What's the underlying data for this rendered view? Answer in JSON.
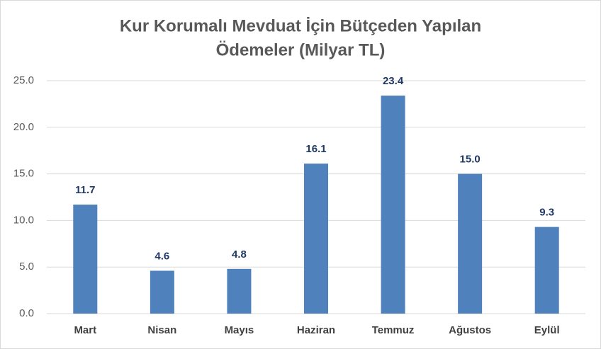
{
  "chart_data": {
    "type": "bar",
    "title": [
      "Kur Korumalı Mevduat İçin Bütçeden Yapılan",
      "Ödemeler (Milyar TL)"
    ],
    "categories": [
      "Mart",
      "Nisan",
      "Mayıs",
      "Haziran",
      "Temmuz",
      "Ağustos",
      "Eylül"
    ],
    "values": [
      11.7,
      4.6,
      4.8,
      16.1,
      23.4,
      15.0,
      9.3
    ],
    "value_labels": [
      "11.7",
      "4.6",
      "4.8",
      "16.1",
      "23.4",
      "15.0",
      "9.3"
    ],
    "color": "#4f81bd",
    "ylim": [
      0,
      25
    ],
    "yticks": [
      {
        "value": 0,
        "label": "0.0"
      },
      {
        "value": 5,
        "label": "5.0"
      },
      {
        "value": 10,
        "label": "10.0"
      },
      {
        "value": 15,
        "label": "15.0"
      },
      {
        "value": 20,
        "label": "20.0"
      },
      {
        "value": 25,
        "label": "25.0"
      }
    ],
    "grid": true
  }
}
